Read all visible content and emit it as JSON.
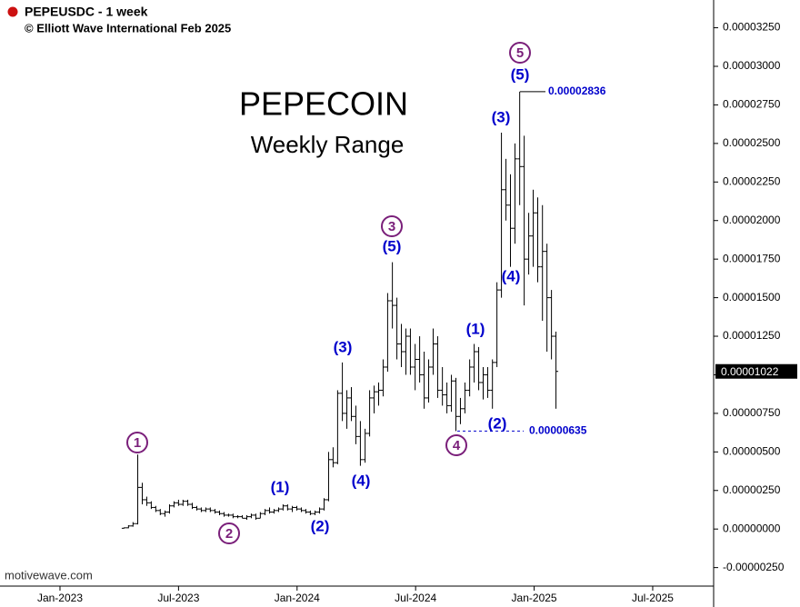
{
  "chart_data": {
    "type": "ohlc",
    "title": "PEPECOIN",
    "subtitle": "Weekly Range",
    "symbol": "PEPEUSDC - 1 week",
    "copyright": "© Elliott Wave International Feb 2025",
    "source": "motivewave.com",
    "color": "#000000",
    "grid": false,
    "xlim": [
      2022.747,
      2025.757
    ],
    "xticks": [
      {
        "value": 2023.0,
        "label": "Jan-2023"
      },
      {
        "value": 2023.5,
        "label": "Jul-2023"
      },
      {
        "value": 2024.0,
        "label": "Jan-2024"
      },
      {
        "value": 2024.5,
        "label": "Jul-2024"
      },
      {
        "value": 2025.0,
        "label": "Jan-2025"
      },
      {
        "value": 2025.5,
        "label": "Jul-2025"
      }
    ],
    "ylim": [
      -3.7e-06,
      3.43e-05
    ],
    "yticks": [
      {
        "value": -2.5e-06,
        "label": "-0.00000250"
      },
      {
        "value": 0,
        "label": "0.00000000"
      },
      {
        "value": 2.5e-06,
        "label": "0.00000250"
      },
      {
        "value": 5e-06,
        "label": "0.00000500"
      },
      {
        "value": 7.5e-06,
        "label": "0.00000750"
      },
      {
        "value": 1e-05,
        "label": "0.00001000"
      },
      {
        "value": 1.25e-05,
        "label": "0.00001250"
      },
      {
        "value": 1.5e-05,
        "label": "0.00001500"
      },
      {
        "value": 1.75e-05,
        "label": "0.00001750"
      },
      {
        "value": 2e-05,
        "label": "0.00002000"
      },
      {
        "value": 2.25e-05,
        "label": "0.00002250"
      },
      {
        "value": 2.5e-05,
        "label": "0.00002500"
      },
      {
        "value": 2.75e-05,
        "label": "0.00002750"
      },
      {
        "value": 3e-05,
        "label": "0.00003000"
      },
      {
        "value": 3.25e-05,
        "label": "0.00003250"
      }
    ],
    "x": [
      2023.27,
      2023.289,
      2023.308,
      2023.328,
      2023.347,
      2023.366,
      2023.385,
      2023.404,
      2023.423,
      2023.443,
      2023.462,
      2023.481,
      2023.5,
      2023.519,
      2023.539,
      2023.558,
      2023.577,
      2023.596,
      2023.615,
      2023.634,
      2023.654,
      2023.673,
      2023.692,
      2023.711,
      2023.73,
      2023.75,
      2023.769,
      2023.788,
      2023.807,
      2023.826,
      2023.845,
      2023.865,
      2023.884,
      2023.903,
      2023.922,
      2023.941,
      2023.96,
      2023.98,
      2023.999,
      2024.018,
      2024.037,
      2024.056,
      2024.076,
      2024.095,
      2024.114,
      2024.133,
      2024.152,
      2024.171,
      2024.191,
      2024.21,
      2024.229,
      2024.248,
      2024.267,
      2024.287,
      2024.306,
      2024.325,
      2024.344,
      2024.363,
      2024.382,
      2024.402,
      2024.421,
      2024.44,
      2024.459,
      2024.478,
      2024.498,
      2024.517,
      2024.536,
      2024.555,
      2024.574,
      2024.593,
      2024.613,
      2024.632,
      2024.651,
      2024.67,
      2024.689,
      2024.708,
      2024.728,
      2024.747,
      2024.766,
      2024.785,
      2024.804,
      2024.824,
      2024.843,
      2024.862,
      2024.881,
      2024.9,
      2024.919,
      2024.939,
      2024.958,
      2024.977,
      2024.996,
      2025.015,
      2025.035,
      2025.054,
      2025.073,
      2025.092
    ],
    "open": [
      5e-08,
      8e-08,
      2e-07,
      3.5e-07,
      2.7e-06,
      1.9e-06,
      1.7e-06,
      1.4e-06,
      1.2e-06,
      1e-06,
      1.1e-06,
      1.5e-06,
      1.7e-06,
      1.6e-06,
      1.8e-06,
      1.6e-06,
      1.4e-06,
      1.3e-06,
      1.2e-06,
      1.3e-06,
      1.2e-06,
      1.1e-06,
      1e-06,
      9e-07,
      9e-07,
      8e-07,
      8e-07,
      7e-07,
      8e-07,
      9e-07,
      7e-07,
      1e-06,
      1.2e-06,
      1.1e-06,
      1.2e-06,
      1.3e-06,
      1.5e-06,
      1.3e-06,
      1.4e-06,
      1.3e-06,
      1.2e-06,
      1.1e-06,
      1e-06,
      1.1e-06,
      1.3e-06,
      1.9e-06,
      4.5e-06,
      4.3e-06,
      8.8e-06,
      7.5e-06,
      8.5e-06,
      7.3e-06,
      6e-06,
      4.5e-06,
      6.2e-06,
      8.5e-06,
      8.9e-06,
      9e-06,
      1.05e-05,
      1.48e-05,
      1.45e-05,
      1.2e-05,
      1.15e-05,
      1.25e-05,
      1.05e-05,
      1.1e-05,
      1e-05,
      8.5e-06,
      1.05e-05,
      1.2e-05,
      9e-06,
      8.7e-06,
      8e-06,
      9.6e-06,
      7.3e-06,
      7.8e-06,
      9e-06,
      1.05e-05,
      1.15e-05,
      9.5e-06,
      1e-05,
      9e-06,
      1.08e-05,
      1.55e-05,
      2.2e-05,
      2.1e-05,
      1.95e-05,
      2.4e-05,
      2.35e-05,
      1.75e-05,
      1.9e-05,
      2.05e-05,
      1.7e-05,
      1.8e-05,
      1.5e-05,
      1.25e-05
    ],
    "high": [
      1e-07,
      2.5e-07,
      4.5e-07,
      4.83e-06,
      3e-06,
      2.1e-06,
      1.8e-06,
      1.5e-06,
      1.3e-06,
      1.2e-06,
      1.6e-06,
      1.8e-06,
      1.9e-06,
      1.9e-06,
      1.9e-06,
      1.7e-06,
      1.5e-06,
      1.4e-06,
      1.4e-06,
      1.4e-06,
      1.3e-06,
      1.2e-06,
      1.1e-06,
      1e-06,
      1e-06,
      9e-07,
      9e-07,
      9e-07,
      1e-06,
      1e-06,
      1.1e-06,
      1.3e-06,
      1.4e-06,
      1.3e-06,
      1.4e-06,
      1.6e-06,
      1.6e-06,
      1.5e-06,
      1.5e-06,
      1.4e-06,
      1.3e-06,
      1.2e-06,
      1.2e-06,
      1.4e-06,
      2e-06,
      5e-06,
      5.3e-06,
      9e-06,
      1.08e-05,
      9e-06,
      9.2e-06,
      8e-06,
      7e-06,
      6.5e-06,
      9e-06,
      9.3e-06,
      9.5e-06,
      1.1e-05,
      1.53e-05,
      1.73e-05,
      1.5e-05,
      1.33e-05,
      1.3e-05,
      1.3e-05,
      1.2e-05,
      1.25e-05,
      1.15e-05,
      1.1e-05,
      1.3e-05,
      1.25e-05,
      1.05e-05,
      9.5e-06,
      1e-05,
      9.8e-06,
      8.5e-06,
      9.5e-06,
      1.1e-05,
      1.2e-05,
      1.18e-05,
      1.05e-05,
      1.05e-05,
      1.1e-05,
      1.6e-05,
      2.57e-05,
      2.4e-05,
      2.3e-05,
      2.5e-05,
      2.836e-05,
      2.55e-05,
      2.05e-05,
      2.2e-05,
      2.15e-05,
      2.1e-05,
      1.85e-05,
      1.55e-05,
      1.28e-05
    ],
    "low": [
      3e-08,
      5e-08,
      1.5e-07,
      3e-07,
      1.6e-06,
      1.5e-06,
      1.3e-06,
      1.1e-06,
      9e-07,
      8e-07,
      1e-06,
      1.4e-06,
      1.5e-06,
      1.5e-06,
      1.5e-06,
      1.3e-06,
      1.2e-06,
      1.1e-06,
      1.1e-06,
      1.1e-06,
      1e-06,
      9e-07,
      8e-07,
      8e-07,
      7e-07,
      7e-07,
      7e-07,
      6e-07,
      7e-07,
      6e-07,
      7e-07,
      9e-07,
      1e-06,
      1e-06,
      1.1e-06,
      1.2e-06,
      1.2e-06,
      1.1e-06,
      1.2e-06,
      1.1e-06,
      1e-06,
      9e-07,
      9e-07,
      1e-06,
      1.2e-06,
      1.8e-06,
      4e-06,
      4.2e-06,
      7e-06,
      6.5e-06,
      7e-06,
      5.5e-06,
      4.1e-06,
      4.3e-06,
      6e-06,
      7.5e-06,
      8e-06,
      8.6e-06,
      1.02e-05,
      1.3e-05,
      1.1e-05,
      1.05e-05,
      1e-05,
      1e-05,
      9e-06,
      9.5e-06,
      7.8e-06,
      8.2e-06,
      1e-05,
      8.5e-06,
      8e-06,
      7.5e-06,
      7.6e-06,
      6.35e-06,
      6.8e-06,
      7.5e-06,
      8.6e-06,
      9.5e-06,
      9e-06,
      8.4e-06,
      8.5e-06,
      7.8e-06,
      1.05e-05,
      1.5e-05,
      2e-05,
      1.7e-05,
      1.85e-05,
      2.1e-05,
      1.45e-05,
      1.65e-05,
      1.7e-05,
      1.6e-05,
      1.35e-05,
      1.15e-05,
      1.1e-05,
      7.8e-06
    ],
    "close": [
      8e-08,
      2e-07,
      3.5e-07,
      2.7e-06,
      1.9e-06,
      1.7e-06,
      1.4e-06,
      1.2e-06,
      1e-06,
      1.1e-06,
      1.5e-06,
      1.7e-06,
      1.6e-06,
      1.8e-06,
      1.6e-06,
      1.4e-06,
      1.3e-06,
      1.2e-06,
      1.3e-06,
      1.2e-06,
      1.1e-06,
      1e-06,
      9e-07,
      9e-07,
      8e-07,
      8e-07,
      7e-07,
      8e-07,
      9e-07,
      7e-07,
      1e-06,
      1.2e-06,
      1.1e-06,
      1.2e-06,
      1.3e-06,
      1.5e-06,
      1.3e-06,
      1.4e-06,
      1.3e-06,
      1.2e-06,
      1.1e-06,
      1e-06,
      1.1e-06,
      1.3e-06,
      1.9e-06,
      4.5e-06,
      4.3e-06,
      8.8e-06,
      7.5e-06,
      8.5e-06,
      7.3e-06,
      6e-06,
      4.5e-06,
      6.2e-06,
      8.5e-06,
      8.9e-06,
      9e-06,
      1.05e-05,
      1.48e-05,
      1.45e-05,
      1.2e-05,
      1.15e-05,
      1.25e-05,
      1.05e-05,
      1.1e-05,
      1e-05,
      8.5e-06,
      1.05e-05,
      1.2e-05,
      9e-06,
      8.7e-06,
      8e-06,
      9.6e-06,
      7.3e-06,
      7.8e-06,
      9e-06,
      1.05e-05,
      1.15e-05,
      9.5e-06,
      1e-05,
      9e-06,
      1.08e-05,
      1.55e-05,
      2.2e-05,
      2.1e-05,
      1.95e-05,
      2.4e-05,
      2.35e-05,
      1.75e-05,
      1.9e-05,
      2.05e-05,
      1.7e-05,
      1.8e-05,
      1.5e-05,
      1.25e-05,
      1.022e-05
    ],
    "last_price": {
      "value": 1.022e-05,
      "label": "0.00001022"
    },
    "price_annotations": [
      {
        "value": 2.836e-05,
        "label": "0.00002836"
      },
      {
        "value": 6.35e-06,
        "label": "0.00000635"
      }
    ],
    "primary_color": "#7a1f7a",
    "intermediate_color": "#0000cc",
    "primary_waves": [
      "1",
      "2",
      "3",
      "4",
      "5"
    ],
    "intermediate_waves": [
      "(1)",
      "(2)",
      "(3)",
      "(4)",
      "(5)",
      "(1)",
      "(2)",
      "(3)",
      "(4)",
      "(5)"
    ]
  }
}
